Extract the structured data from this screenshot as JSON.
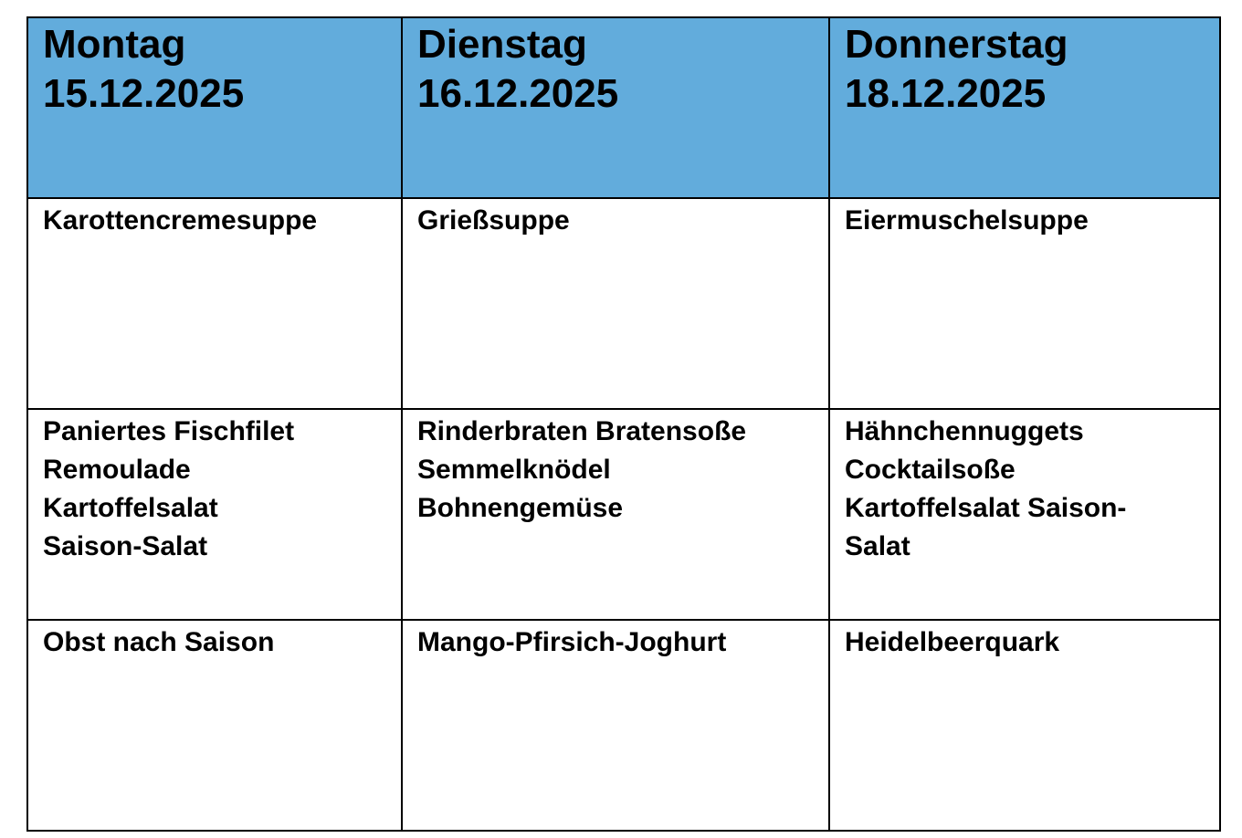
{
  "header": [
    {
      "day": "Montag",
      "date": "15.12.2025"
    },
    {
      "day": "Dienstag",
      "date": "16.12.2025"
    },
    {
      "day": "Donnerstag",
      "date": "18.12.2025"
    }
  ],
  "rows": [
    [
      [
        "Karottencremesuppe"
      ],
      [
        "Grießsuppe"
      ],
      [
        "Eiermuschelsuppe"
      ]
    ],
    [
      [
        "Paniertes Fischfilet",
        "Remoulade",
        "Kartoffelsalat",
        "Saison-Salat"
      ],
      [
        "Rinderbraten Bratensoße",
        "Semmelknödel",
        "Bohnengemüse"
      ],
      [
        "Hähnchennuggets",
        "Cocktailsoße",
        "Kartoffelsalat Saison-",
        "Salat"
      ]
    ],
    [
      [
        "Obst nach Saison"
      ],
      [
        "Mango-Pfirsich-Joghurt"
      ],
      [
        "Heidelbeerquark"
      ]
    ]
  ],
  "colors": {
    "header_bg": "#62acdc",
    "border": "#000000"
  }
}
